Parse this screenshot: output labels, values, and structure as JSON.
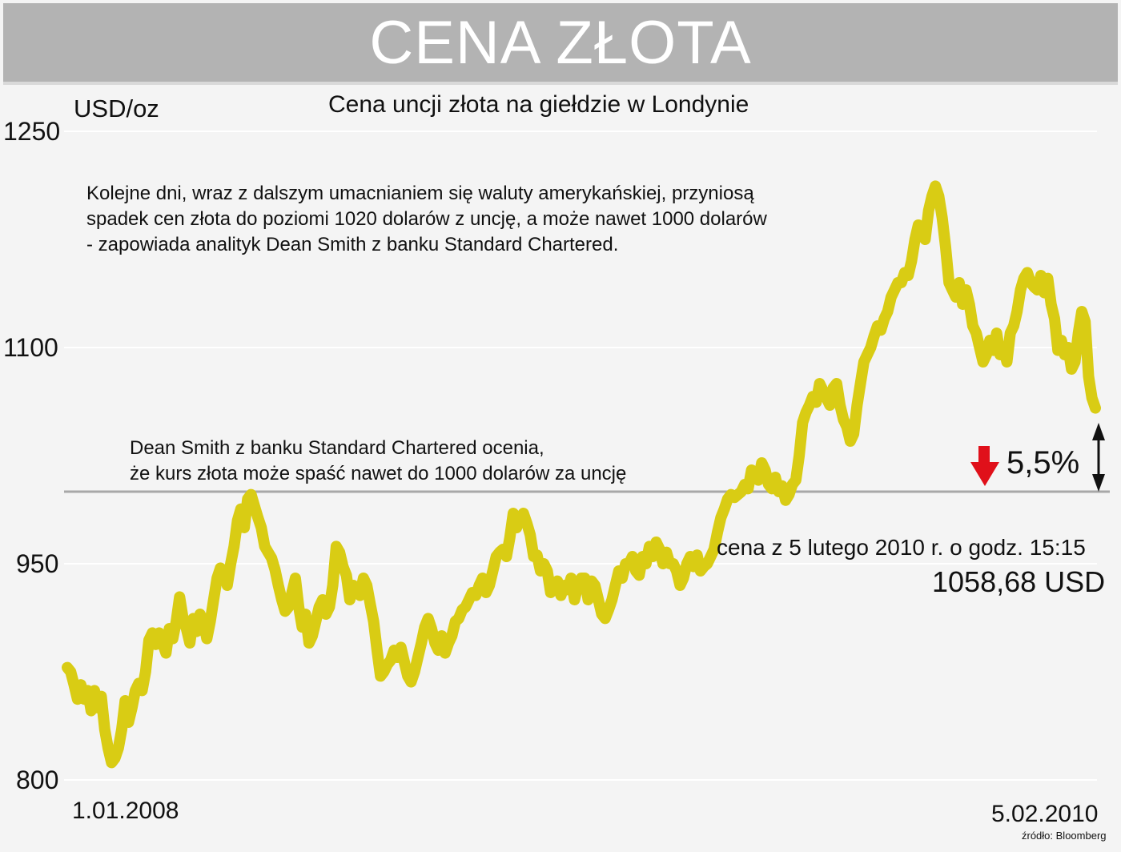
{
  "header": {
    "title": "CENA ZŁOTA"
  },
  "chart_data": {
    "type": "line",
    "title": "Cena uncji złota na giełdzie w Londynie",
    "ylabel": "USD/oz",
    "ylim": [
      800,
      1250
    ],
    "yticks": [
      1250,
      1100,
      950,
      800
    ],
    "x_start_label": "1.01.2008",
    "x_end_label": "5.02.2010",
    "grid": true,
    "line_color": "#d9cc14",
    "reference_line": {
      "value": 1000,
      "color": "#a8a8a8"
    },
    "series": [
      {
        "values": [
          878,
          875,
          866,
          856,
          866,
          856,
          862,
          848,
          862,
          850,
          858,
          835,
          822,
          812,
          815,
          822,
          835,
          855,
          840,
          850,
          862,
          867,
          862,
          875,
          897,
          902,
          894,
          902,
          895,
          888,
          905,
          898,
          910,
          927,
          912,
          905,
          895,
          912,
          903,
          915,
          910,
          898,
          910,
          925,
          940,
          947,
          945,
          935,
          950,
          962,
          980,
          988,
          975,
          995,
          998,
          990,
          982,
          975,
          962,
          958,
          954,
          946,
          935,
          925,
          917,
          920,
          930,
          940,
          920,
          906,
          915,
          895,
          900,
          910,
          920,
          925,
          915,
          920,
          935,
          962,
          958,
          948,
          942,
          925,
          935,
          930,
          928,
          940,
          935,
          922,
          910,
          890,
          872,
          875,
          880,
          883,
          890,
          885,
          892,
          882,
          872,
          868,
          875,
          885,
          895,
          906,
          912,
          905,
          895,
          890,
          900,
          888,
          895,
          900,
          910,
          912,
          918,
          920,
          925,
          930,
          928,
          935,
          940,
          930,
          935,
          945,
          955,
          958,
          960,
          955,
          968,
          985,
          975,
          982,
          985,
          978,
          970,
          955,
          956,
          945,
          950,
          945,
          930,
          935,
          938,
          928,
          935,
          932,
          940,
          925,
          935,
          940,
          940,
          925,
          938,
          935,
          925,
          915,
          912,
          918,
          925,
          935,
          945,
          940,
          950,
          950,
          955,
          945,
          942,
          955,
          950,
          962,
          955,
          965,
          960,
          950,
          958,
          950,
          950,
          945,
          935,
          940,
          950,
          955,
          948,
          956,
          945,
          948,
          950,
          955,
          960,
          972,
          982,
          988,
          995,
          998,
          996,
          998,
          1000,
          1005,
          1002,
          1015,
          1010,
          1008,
          1020,
          1015,
          1005,
          1002,
          1010,
          1000,
          1004,
          994,
          998,
          1005,
          1008,
          1025,
          1048,
          1055,
          1060,
          1066,
          1062,
          1075,
          1070,
          1065,
          1060,
          1072,
          1075,
          1060,
          1050,
          1045,
          1035,
          1040,
          1060,
          1075,
          1090,
          1095,
          1100,
          1108,
          1115,
          1112,
          1120,
          1125,
          1135,
          1140,
          1145,
          1145,
          1152,
          1150,
          1160,
          1175,
          1185,
          1180,
          1175,
          1195,
          1205,
          1212,
          1205,
          1190,
          1170,
          1145,
          1140,
          1135,
          1145,
          1130,
          1140,
          1130,
          1115,
          1110,
          1100,
          1090,
          1095,
          1105,
          1098,
          1110,
          1095,
          1100,
          1090,
          1110,
          1115,
          1125,
          1140,
          1148,
          1152,
          1145,
          1142,
          1140,
          1150,
          1138,
          1148,
          1130,
          1120,
          1098,
          1105,
          1095,
          1100,
          1085,
          1090,
          1110,
          1125,
          1118,
          1080,
          1065,
          1058
        ]
      }
    ],
    "annotations": [
      "Kolejne dni, wraz z dalszym umacnianiem się waluty amerykańskiej, przyniosą",
      "spadek cen złota do poziomi 1020 dolarów z uncję, a może nawet 1000 dolarów",
      "- zapowiada analityk Dean Smith z banku Standard Chartered.",
      "Dean Smith z banku Standard Chartered ocenia,",
      "że kurs złota może spaść nawet do 1000 dolarów za uncję",
      "cena z 5 lutego 2010 r. o godz. 15:15",
      "1058,68 USD",
      "5,5%",
      "źródło: Bloomberg"
    ],
    "arrow_color": "#e0101a"
  }
}
